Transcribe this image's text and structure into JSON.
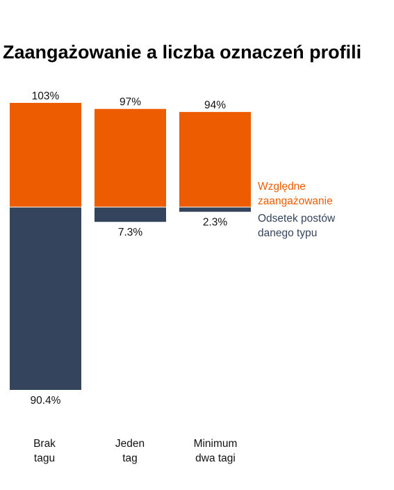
{
  "chart_data": {
    "type": "bar",
    "title": "Zaangażowanie a liczba oznaczeń profili",
    "categories": [
      "Brak\ntagu",
      "Jeden\ntag",
      "Minimum\ndwa tagi"
    ],
    "series": [
      {
        "name": "Względne zaangażowanie",
        "values": [
          103,
          97,
          94
        ],
        "labels": [
          "103%",
          "97%",
          "94%"
        ],
        "color": "#ee5c00"
      },
      {
        "name": "Odsetek postów danego typu",
        "values": [
          90.4,
          7.3,
          2.3
        ],
        "labels": [
          "90.4%",
          "7.3%",
          "2.3%"
        ],
        "color": "#34445c"
      }
    ],
    "legend": {
      "placement": "right",
      "entries": [
        "Względne\nzaangażowanie",
        "Odsetek postów\ndanego typu"
      ]
    },
    "grid": false
  }
}
